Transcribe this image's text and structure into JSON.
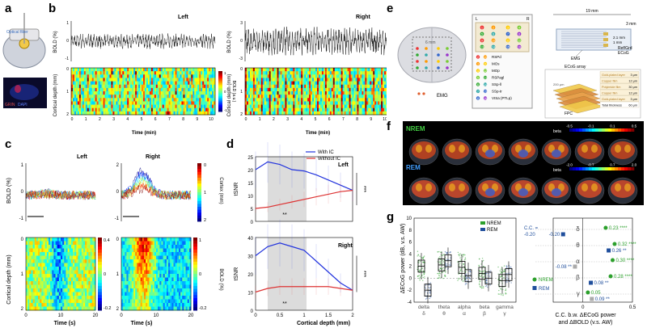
{
  "panels": {
    "a": "a",
    "b": "b",
    "c": "c",
    "d": "d",
    "e": "e",
    "f": "f",
    "g": "g"
  },
  "a": {
    "optical_fiber": "Optical fiber",
    "tracer": "GRIN",
    "marker": "DAPI"
  },
  "b": {
    "left": {
      "title": "Left",
      "ylabel_top": "BOLD (%)",
      "ylabel_bottom": "Cortical depth (mm)",
      "xlabel": "Time (min)",
      "yticks_top": [
        "1",
        "0",
        "-1"
      ],
      "yticks_bottom": [
        "0",
        "1",
        "2"
      ],
      "xticks": [
        "0",
        "1",
        "2",
        "3",
        "4",
        "5",
        "6",
        "7",
        "8",
        "9",
        "10"
      ],
      "cbar_label": "BOLD (a.u.)",
      "cbar_ticks": [
        "1",
        "0",
        "-1"
      ]
    },
    "right": {
      "title": "Right",
      "ylabel_top": "BOLD (%)",
      "ylabel_bottom": "Cortical depth (mm)",
      "xlabel": "Time (min)",
      "yticks_top": [
        "3",
        "0",
        "-3"
      ],
      "yticks_bottom": [
        "0",
        "1",
        "2"
      ],
      "xticks": [
        "0",
        "1",
        "2",
        "3",
        "4",
        "5",
        "6",
        "7",
        "8",
        "9",
        "10"
      ],
      "cbar_label": "BOLD (a.u.)",
      "cbar_ticks": [
        "1",
        "0",
        "-1"
      ]
    }
  },
  "c": {
    "left": {
      "title": "Left",
      "ylabel_top": "BOLD (%)",
      "ylabel_bottom": "Cortical depth (mm)",
      "xlabel": "Time (s)",
      "yticks_top": [
        "1",
        "0",
        "-1"
      ],
      "yticks_bottom": [
        "0",
        "1",
        "2"
      ],
      "xticks": [
        "0",
        "10",
        "20"
      ],
      "cbar_ticks": [
        "0.4",
        "0",
        "-0.2"
      ]
    },
    "right": {
      "title": "Right",
      "ylabel_top": "BOLD (%)",
      "xlabel": "Time (s)",
      "yticks_top": [
        "2",
        "0",
        "-1"
      ],
      "yticks_bottom": [
        "0",
        "1",
        "2"
      ],
      "xticks": [
        "0",
        "10",
        "20"
      ],
      "cbar_top_label": "Cortex (mm)",
      "cbar_top_ticks": [
        "0",
        "1",
        "2"
      ],
      "cbar_label": "BOLD (%)",
      "cbar_ticks": [
        "1",
        "0",
        "-0.2"
      ]
    }
  },
  "d": {
    "legend": [
      {
        "name": "With IC",
        "color": "#2233dd"
      },
      {
        "name": "Without IC",
        "color": "#dd3333"
      }
    ],
    "xlabel": "Cortical depth (mm)",
    "top": {
      "title": "Left",
      "ylabel": "tSNR",
      "yticks": [
        "25",
        "20",
        "15",
        "10",
        "5",
        "0"
      ],
      "sig_inner": "**",
      "sig_outer": "***"
    },
    "bottom": {
      "title": "Right",
      "ylabel": "tSNR",
      "yticks": [
        "40",
        "30",
        "20",
        "10",
        "0"
      ],
      "sig_inner": "**",
      "sig_outer": "***"
    },
    "xticks": [
      "0",
      "0.5",
      "1",
      "1.5",
      "2"
    ]
  },
  "chart_data": [
    {
      "type": "line",
      "title": "d Left",
      "xlabel": "Cortical depth (mm)",
      "ylabel": "tSNR",
      "ylim": [
        0,
        25
      ],
      "x": [
        0,
        0.25,
        0.5,
        0.75,
        1,
        1.25,
        1.5,
        1.75,
        2
      ],
      "series": [
        {
          "name": "With IC",
          "values": [
            20,
            23,
            22,
            20,
            19.5,
            18,
            16,
            14,
            12
          ]
        },
        {
          "name": "Without IC",
          "values": [
            5,
            5.5,
            6.5,
            7.5,
            8.5,
            9.5,
            10.5,
            11.5,
            12
          ]
        }
      ]
    },
    {
      "type": "line",
      "title": "d Right",
      "xlabel": "Cortical depth (mm)",
      "ylabel": "tSNR",
      "ylim": [
        0,
        40
      ],
      "x": [
        0,
        0.25,
        0.5,
        0.75,
        1,
        1.25,
        1.5,
        1.75,
        2
      ],
      "series": [
        {
          "name": "With IC",
          "values": [
            30,
            35,
            37,
            35,
            33,
            27,
            21,
            15,
            11
          ]
        },
        {
          "name": "Without IC",
          "values": [
            10,
            12,
            13,
            13,
            13,
            13,
            13,
            12,
            11
          ]
        }
      ]
    },
    {
      "type": "bar",
      "title": "g ΔECoG power",
      "ylabel": "ΔECoG power (dB, v.s. AW)",
      "ylim": [
        -4,
        10
      ],
      "categories": [
        "delta δ",
        "theta θ",
        "alpha α",
        "beta β",
        "gamma γ"
      ],
      "series": [
        {
          "name": "NREM",
          "values": [
            2,
            2.2,
            1.8,
            0.8,
            -0.4
          ]
        },
        {
          "name": "REM",
          "values": [
            -2,
            2.9,
            0.4,
            0,
            0.6
          ]
        }
      ]
    },
    {
      "type": "scatter",
      "title": "g C.C. b.w. ΔECoG power and ΔBOLD",
      "xlabel": "C.C. b.w. ΔECoG power and ΔBOLD (v.s. AW)",
      "categories": [
        "δ",
        "θ",
        "α",
        "β",
        "γ"
      ],
      "series": [
        {
          "name": "NREM",
          "values": [
            0.23,
            0.32,
            0.3,
            0.28,
            0.05
          ]
        },
        {
          "name": "REM",
          "values": [
            -0.2,
            0.26,
            -0.08,
            0.08,
            0.09
          ]
        }
      ],
      "xlim": [
        -0.3,
        0.5
      ]
    }
  ],
  "e": {
    "scalebar_19": "19 mm",
    "scalebar_3": "3 mm",
    "dim_6mm": "6 mm",
    "dim_21": "2.1 mm",
    "dim_1": "1 mm",
    "lr_left": "L",
    "lr_right": "R",
    "ref_gnd": "Ref/Grd",
    "ecog": "ECoG",
    "emg": "EMG",
    "emg_top": "EMG",
    "array_title": "ECoG array",
    "fpc": "FPC",
    "um200": "200 μm",
    "regions": [
      {
        "a": "2",
        "b": "10",
        "name": "RSPd"
      },
      {
        "a": "3",
        "b": "11",
        "name": "MOs"
      },
      {
        "a": "4",
        "b": "12",
        "name": "MOp"
      },
      {
        "a": "5",
        "b": "13",
        "name": "RSPagl"
      },
      {
        "a": "6",
        "b": "14",
        "name": "SSp-ll"
      },
      {
        "a": "7",
        "b": "15",
        "name": "SSp-tr"
      },
      {
        "a": "8",
        "b": "16",
        "name": "VISa (PTLp)"
      }
    ],
    "layers": [
      {
        "name": "Gold-plated layer",
        "val": "3 μm"
      },
      {
        "name": "Copper film",
        "val": "12 μm"
      },
      {
        "name": "Polyimide film",
        "val": "30 μm"
      },
      {
        "name": "Copper film",
        "val": "12 μm"
      },
      {
        "name": "Gold-plated layer",
        "val": "3 μm"
      },
      {
        "name": "Total thickness",
        "val": "60 μm"
      }
    ]
  },
  "f": {
    "nrem": "NREM",
    "rem": "REM",
    "beta": "beta",
    "nrem_cbar": [
      "-0.5",
      "-0.1",
      "0.1",
      "0.5"
    ],
    "rem_cbar": [
      "-2.0",
      "-0.7",
      "0.7",
      "2.0"
    ]
  },
  "g": {
    "ylabel": "ΔECoG power (dB, v.s. AW)",
    "yticks": [
      "10",
      "8",
      "6",
      "4",
      "2",
      "0",
      "-2",
      "-4"
    ],
    "bands": [
      {
        "name": "delta",
        "sym": "δ"
      },
      {
        "name": "theta",
        "sym": "θ"
      },
      {
        "name": "alpha",
        "sym": "α"
      },
      {
        "name": "beta",
        "sym": "β"
      },
      {
        "name": "gamma",
        "sym": "γ"
      }
    ],
    "legend_nrem": "NREM",
    "legend_rem": "REM",
    "cc_label": "C.C. =",
    "cc_val": "-0.20",
    "right_xlabel1": "C.C. b.w. ΔECoG power",
    "right_xlabel2": "and ΔBOLD (v.s. AW)",
    "right_xticks": [
      "0",
      "0.5"
    ],
    "nrem_vals": [
      "0.23 ****",
      "0.32 ****",
      "0.30 ****",
      "0.28 ****",
      "0.05"
    ],
    "rem_vals": [
      "-0.20",
      "0.26 **",
      "-0.08 **",
      "0.08 **",
      "0.09 **"
    ],
    "greek": [
      "δ",
      "θ",
      "α",
      "β",
      "γ"
    ],
    "colors": {
      "nrem": "#2ca02c",
      "rem": "#1f4e9c"
    }
  }
}
